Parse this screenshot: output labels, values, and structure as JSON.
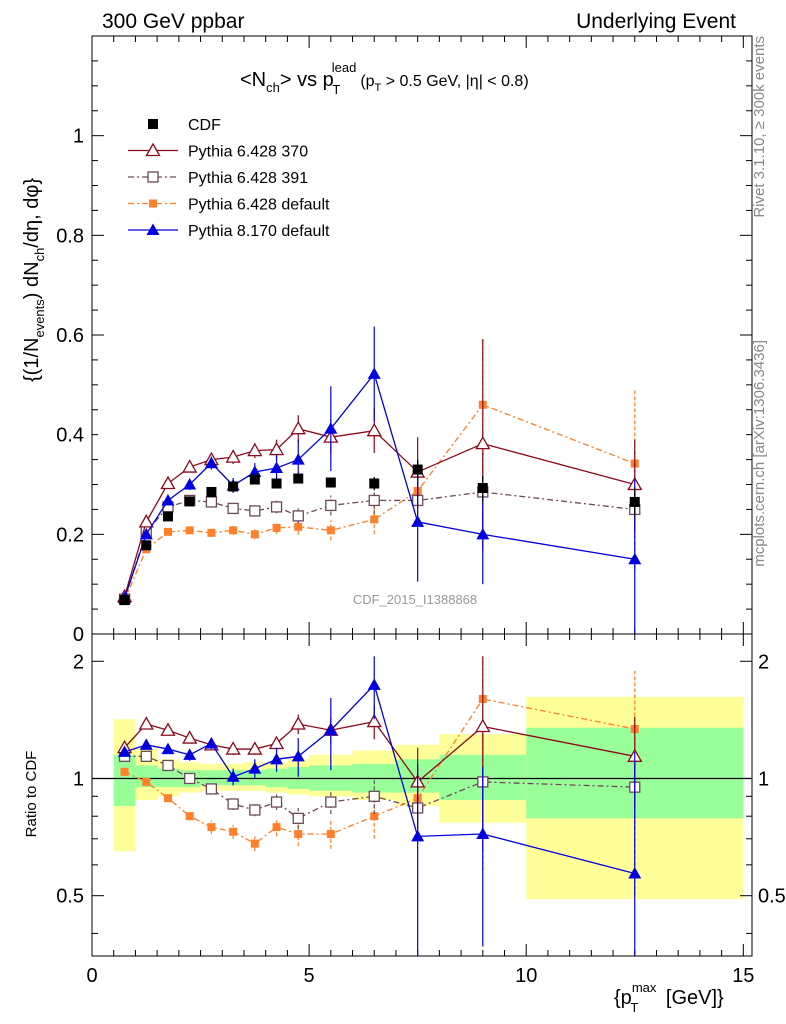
{
  "header": {
    "left": "300 GeV ppbar",
    "right": "Underlying Event"
  },
  "side_labels": {
    "rivet": "Rivet 3.1.10, ≥ 300k events",
    "mcplots": "mcplots.cern.ch [arXiv:1306.3436]"
  },
  "watermark": "CDF_2015_I1388868",
  "title": {
    "part1": "<N",
    "sub1": "ch",
    "part2": "> vs p",
    "sub2": "T",
    "sup2": "lead",
    "cut1": "(p",
    "cut1_sub": "T",
    "cut1_rest": " > 0.5 GeV, |η| < 0.8)"
  },
  "ylabel_main": {
    "a": "{(1/N",
    "sub_a": "events",
    "b": ") dN",
    "sub_b": "ch",
    "c": "/dη, dφ}"
  },
  "ylabel_ratio": "Ratio to CDF",
  "xlabel": {
    "a": "{p",
    "sub": "T",
    "sup": "max",
    "b": " [GeV]}"
  },
  "colors": {
    "cdf": "#000000",
    "p6_370": "#8b0a1a",
    "p6_391": "#6b4a5a",
    "p6_default": "#ff7f2a",
    "p8_default": "#0000e0",
    "band_yellow": "#ffff99",
    "band_green": "#99ff99"
  },
  "chart_data": [
    {
      "type": "scatter",
      "panel": "main",
      "xlim": [
        0,
        15.2
      ],
      "ylim": [
        0,
        1.2
      ],
      "yticks": [
        0.2,
        0.4,
        0.6,
        0.8,
        1
      ],
      "ytick_labels": [
        "0.2",
        "0.4",
        "0.6",
        "0.8",
        "1"
      ],
      "ytick_zero_label": "0",
      "x": [
        0.75,
        1.25,
        1.75,
        2.25,
        2.75,
        3.25,
        3.75,
        4.25,
        4.75,
        5.5,
        6.5,
        7.5,
        9.0,
        12.5
      ],
      "legend_placement": "top-left",
      "series": [
        {
          "name": "CDF",
          "key": "cdf",
          "values": [
            0.068,
            0.178,
            0.236,
            0.266,
            0.285,
            0.296,
            0.31,
            0.302,
            0.312,
            0.304,
            0.302,
            0.33,
            0.293,
            0.265
          ],
          "errors": [
            0.003,
            0.004,
            0.005,
            0.005,
            0.006,
            0.007,
            0.007,
            0.008,
            0.009,
            0.01,
            0.013,
            0.02,
            0.025,
            0.03
          ]
        },
        {
          "name": "Pythia 6.428 370",
          "key": "p6_370",
          "values": [
            0.075,
            0.225,
            0.302,
            0.335,
            0.35,
            0.355,
            0.368,
            0.37,
            0.412,
            0.395,
            0.408,
            0.325,
            0.382,
            0.3
          ],
          "errors": [
            0.005,
            0.008,
            0.01,
            0.01,
            0.012,
            0.014,
            0.015,
            0.02,
            0.027,
            0.035,
            0.045,
            0.07,
            0.21,
            0.09
          ]
        },
        {
          "name": "Pythia 6.428 391",
          "key": "p6_391",
          "values": [
            0.07,
            0.205,
            0.255,
            0.268,
            0.265,
            0.252,
            0.247,
            0.255,
            0.237,
            0.258,
            0.268,
            0.268,
            0.285,
            0.25
          ],
          "errors": [
            0.004,
            0.006,
            0.007,
            0.008,
            0.009,
            0.01,
            0.011,
            0.013,
            0.015,
            0.02,
            0.028,
            0.05,
            0.12,
            0.12
          ]
        },
        {
          "name": "Pythia 6.428 default",
          "key": "p6_default",
          "values": [
            0.068,
            0.17,
            0.205,
            0.208,
            0.203,
            0.208,
            0.2,
            0.213,
            0.215,
            0.208,
            0.23,
            0.287,
            0.46,
            0.342
          ],
          "errors": [
            0.004,
            0.005,
            0.006,
            0.007,
            0.008,
            0.009,
            0.01,
            0.012,
            0.016,
            0.02,
            0.03,
            0.06,
            0.13,
            0.15
          ]
        },
        {
          "name": "Pythia 8.170 default",
          "key": "p8_default",
          "values": [
            0.072,
            0.2,
            0.268,
            0.3,
            0.343,
            0.298,
            0.325,
            0.333,
            0.35,
            0.412,
            0.522,
            0.225,
            0.2,
            0.15
          ],
          "errors": [
            0.004,
            0.007,
            0.009,
            0.011,
            0.013,
            0.015,
            0.018,
            0.025,
            0.04,
            0.085,
            0.095,
            0.12,
            0.1,
            0.16
          ]
        }
      ]
    },
    {
      "type": "scatter",
      "panel": "ratio",
      "xlim": [
        0,
        15.2
      ],
      "ylim": [
        0.35,
        2.35
      ],
      "log_y": true,
      "yticks": [
        0.5,
        1,
        2
      ],
      "ytick_labels": [
        "0.5",
        "1",
        "2"
      ],
      "xticks": [
        0,
        5,
        10,
        15
      ],
      "xtick_labels": [
        "0",
        "5",
        "10",
        "15"
      ],
      "x": [
        0.75,
        1.25,
        1.75,
        2.25,
        2.75,
        3.25,
        3.75,
        4.25,
        4.75,
        5.5,
        6.5,
        7.5,
        9.0,
        12.5
      ],
      "bands": {
        "bin_edges": [
          0.5,
          1.0,
          1.5,
          2.0,
          2.5,
          3.0,
          3.5,
          4.0,
          4.5,
          5.0,
          6.0,
          7.0,
          8.0,
          10.0,
          15.0
        ],
        "yellow_low": [
          0.65,
          0.88,
          0.9,
          0.92,
          0.93,
          0.93,
          0.93,
          0.92,
          0.91,
          0.9,
          0.88,
          0.85,
          0.77,
          0.49
        ],
        "yellow_high": [
          1.42,
          1.2,
          1.12,
          1.1,
          1.09,
          1.09,
          1.1,
          1.1,
          1.12,
          1.15,
          1.18,
          1.22,
          1.3,
          1.62
        ],
        "green_low": [
          0.85,
          0.95,
          0.95,
          0.95,
          0.96,
          0.96,
          0.96,
          0.95,
          0.94,
          0.93,
          0.92,
          0.92,
          0.88,
          0.79
        ],
        "green_high": [
          1.15,
          1.08,
          1.06,
          1.05,
          1.05,
          1.05,
          1.05,
          1.06,
          1.07,
          1.08,
          1.09,
          1.12,
          1.15,
          1.35
        ]
      },
      "series": [
        {
          "key": "p6_370",
          "values": [
            1.2,
            1.38,
            1.33,
            1.27,
            1.22,
            1.19,
            1.19,
            1.23,
            1.38,
            1.33,
            1.4,
            0.98,
            1.36,
            1.14
          ],
          "errors": [
            0.02,
            0.03,
            0.03,
            0.03,
            0.03,
            0.04,
            0.04,
            0.05,
            0.08,
            0.1,
            0.14,
            0.22,
            0.7,
            0.3
          ]
        },
        {
          "key": "p6_391",
          "values": [
            1.14,
            1.14,
            1.08,
            1.0,
            0.94,
            0.86,
            0.83,
            0.87,
            0.79,
            0.87,
            0.9,
            0.84,
            0.98,
            0.95
          ],
          "errors": [
            0.02,
            0.03,
            0.03,
            0.03,
            0.03,
            0.03,
            0.03,
            0.04,
            0.05,
            0.06,
            0.09,
            0.15,
            0.4,
            0.45
          ]
        },
        {
          "key": "p6_default",
          "values": [
            1.04,
            0.98,
            0.89,
            0.8,
            0.75,
            0.73,
            0.68,
            0.75,
            0.72,
            0.72,
            0.8,
            0.89,
            1.6,
            1.34
          ],
          "errors": [
            0.02,
            0.02,
            0.02,
            0.02,
            0.03,
            0.03,
            0.03,
            0.04,
            0.05,
            0.06,
            0.1,
            0.18,
            0.45,
            0.55
          ]
        },
        {
          "key": "p8_default",
          "values": [
            1.17,
            1.22,
            1.19,
            1.15,
            1.23,
            1.01,
            1.06,
            1.12,
            1.14,
            1.33,
            1.74,
            0.71,
            0.72,
            0.57
          ],
          "errors": [
            0.02,
            0.03,
            0.03,
            0.04,
            0.04,
            0.05,
            0.06,
            0.08,
            0.13,
            0.28,
            0.32,
            0.38,
            0.35,
            0.6
          ]
        }
      ]
    }
  ]
}
